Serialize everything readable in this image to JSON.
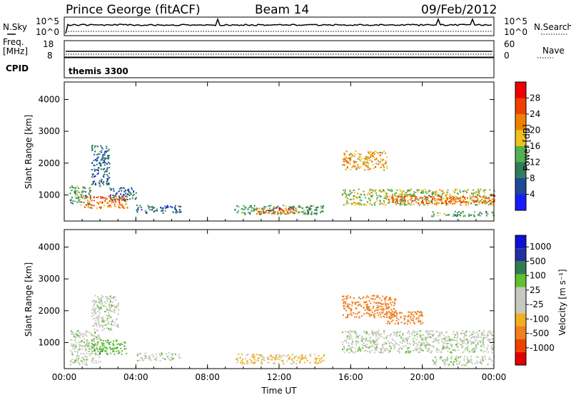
{
  "header": {
    "site": "Prince George (fitACF)",
    "beam": "Beam 14",
    "date": "09/Feb/2012"
  },
  "meta_panels": {
    "nsky_label": "N.Sky",
    "nsearch_label": "N.Search",
    "freq_label": "Freq.",
    "freq_unit": "[MHz]",
    "nave_label": "Nave",
    "cpid_label": "CPID",
    "cpid_value": "themis 3300",
    "noise_ticks": [
      "10^5",
      "10^0"
    ],
    "noise_ticks_right": [
      "10^5",
      "10^0"
    ],
    "freq_ticks": [
      "18",
      "8"
    ],
    "nave_ticks": [
      "60",
      "0"
    ]
  },
  "axes": {
    "ylabel": "Slant Range [km]",
    "xlabel": "Time UT",
    "x_ticks": [
      "00:00",
      "04:00",
      "08:00",
      "12:00",
      "16:00",
      "20:00",
      "00:00"
    ],
    "y_ticks": [
      "1000",
      "2000",
      "3000",
      "4000"
    ],
    "y_range_km": [
      180,
      4550
    ],
    "x_range_hours": [
      0,
      24
    ]
  },
  "colors": {
    "power": [
      "#1a1aff",
      "#1e4a96",
      "#2f7d5a",
      "#52b050",
      "#f0c020",
      "#f08000",
      "#f04000",
      "#f00000"
    ],
    "velocity": [
      "#e00000",
      "#f04000",
      "#f08020",
      "#f0b020",
      "#c8c8c0",
      "#c8c8c0",
      "#60c030",
      "#2e7d52",
      "#2030a0",
      "#1010d0"
    ]
  },
  "chart_data": [
    {
      "type": "heatmap",
      "title": "Power [dB]",
      "xlabel": "Time UT",
      "ylabel": "Slant Range [km]",
      "x_range_hours": [
        0,
        24
      ],
      "y_range_km": [
        180,
        4550
      ],
      "colorbar_label": "Power [dB]",
      "colorbar_ticks": [
        "4",
        "8",
        "12",
        "16",
        "20",
        "24",
        "28"
      ],
      "scatter_regions": [
        {
          "t0": 0.3,
          "t1": 1.5,
          "r0": 700,
          "r1": 1300,
          "power": 12
        },
        {
          "t0": 1.0,
          "t1": 3.5,
          "r0": 600,
          "r1": 1000,
          "power": 24
        },
        {
          "t0": 1.5,
          "t1": 2.5,
          "r0": 1300,
          "r1": 2600,
          "power": 8
        },
        {
          "t0": 2.5,
          "t1": 4.0,
          "r0": 850,
          "r1": 1250,
          "power": 8
        },
        {
          "t0": 4.0,
          "t1": 6.5,
          "r0": 450,
          "r1": 700,
          "power": 8
        },
        {
          "t0": 9.5,
          "t1": 14.5,
          "r0": 400,
          "r1": 700,
          "power": 12
        },
        {
          "t0": 10.5,
          "t1": 13.0,
          "r0": 420,
          "r1": 620,
          "power": 24
        },
        {
          "t0": 15.5,
          "t1": 18.0,
          "r0": 1800,
          "r1": 2400,
          "power": 20
        },
        {
          "t0": 15.5,
          "t1": 24.0,
          "r0": 700,
          "r1": 1200,
          "power": 16
        },
        {
          "t0": 18.0,
          "t1": 24.0,
          "r0": 750,
          "r1": 1000,
          "power": 24
        },
        {
          "t0": 20.5,
          "t1": 24.0,
          "r0": 350,
          "r1": 500,
          "power": 12
        }
      ]
    },
    {
      "type": "heatmap",
      "title": "Velocity [m s-1]",
      "xlabel": "Time UT",
      "ylabel": "Slant Range [km]",
      "x_range_hours": [
        0,
        24
      ],
      "y_range_km": [
        180,
        4550
      ],
      "colorbar_label": "Velocity [m s⁻¹]",
      "colorbar_ticks": [
        "1000",
        "500",
        "100",
        "25",
        "-25",
        "-100",
        "-500",
        "-1000"
      ],
      "scatter_regions": [
        {
          "t0": 0.3,
          "t1": 2.0,
          "r0": 300,
          "r1": 1400,
          "velocity": 0
        },
        {
          "t0": 1.5,
          "t1": 3.0,
          "r0": 1400,
          "r1": 2500,
          "velocity": 0
        },
        {
          "t0": 1.5,
          "t1": 3.5,
          "r0": 650,
          "r1": 1100,
          "velocity": 70
        },
        {
          "t0": 4.0,
          "t1": 6.5,
          "r0": 450,
          "r1": 700,
          "velocity": 0
        },
        {
          "t0": 9.5,
          "t1": 14.5,
          "r0": 350,
          "r1": 650,
          "velocity": -60
        },
        {
          "t0": 15.5,
          "t1": 18.5,
          "r0": 1800,
          "r1": 2500,
          "velocity": -200
        },
        {
          "t0": 15.5,
          "t1": 24.0,
          "r0": 700,
          "r1": 1400,
          "velocity": 0
        },
        {
          "t0": 18.0,
          "t1": 20.0,
          "r0": 1600,
          "r1": 2000,
          "velocity": -150
        },
        {
          "t0": 20.5,
          "t1": 24.0,
          "r0": 300,
          "r1": 600,
          "velocity": 0
        }
      ]
    }
  ]
}
